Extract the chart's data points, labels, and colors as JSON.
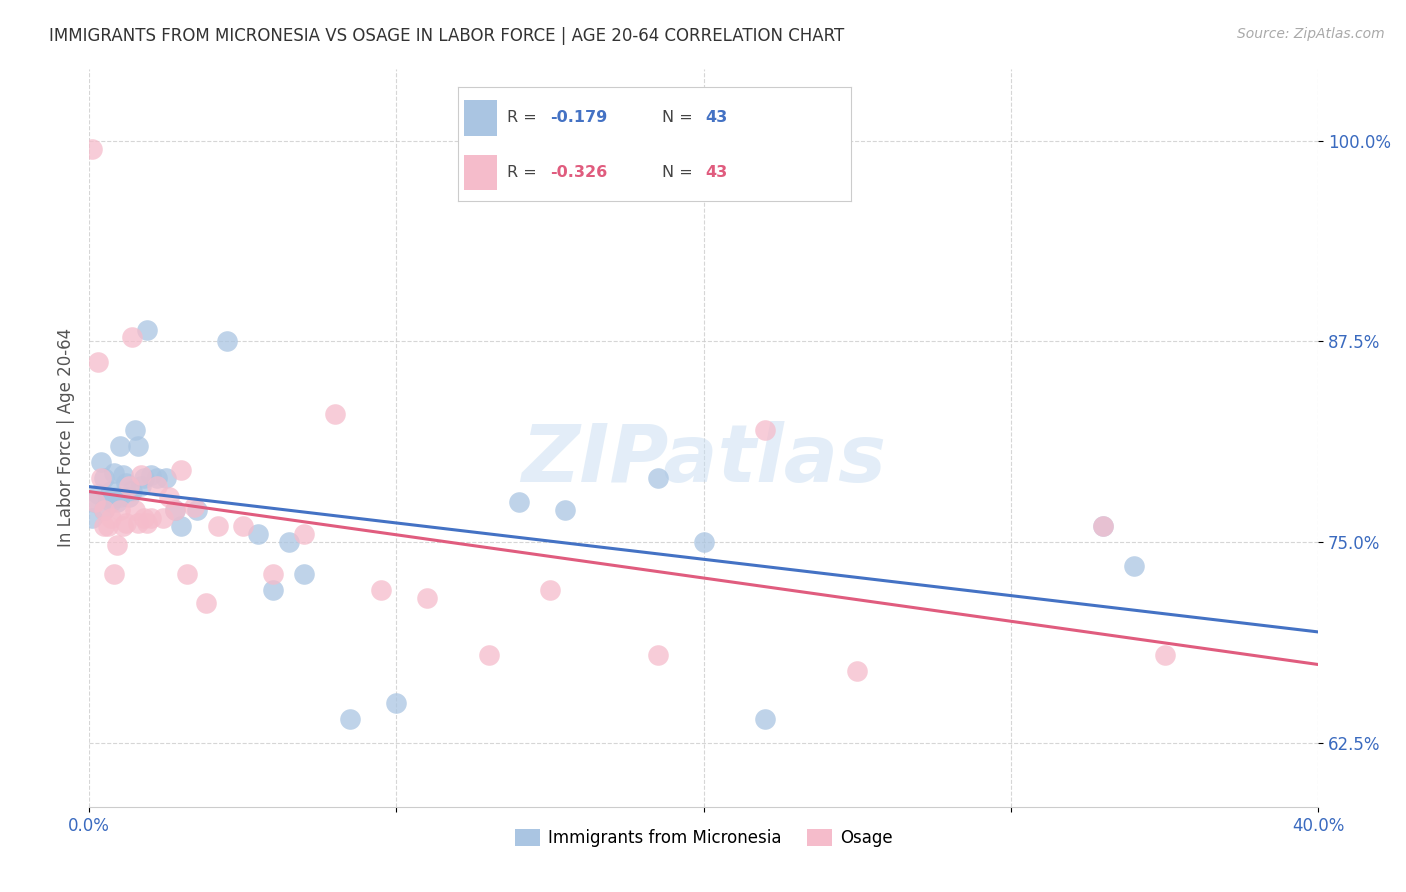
{
  "title": "IMMIGRANTS FROM MICRONESIA VS OSAGE IN LABOR FORCE | AGE 20-64 CORRELATION CHART",
  "source": "Source: ZipAtlas.com",
  "ylabel": "In Labor Force | Age 20-64",
  "xlim": [
    0.0,
    0.4
  ],
  "ylim": [
    0.585,
    1.045
  ],
  "xticks": [
    0.0,
    0.4
  ],
  "xticklabels": [
    "0.0%",
    "40.0%"
  ],
  "yticks": [
    0.625,
    0.75,
    0.875,
    1.0
  ],
  "yticklabels": [
    "62.5%",
    "75.0%",
    "87.5%",
    "100.0%"
  ],
  "legend_labels": [
    "Immigrants from Micronesia",
    "Osage"
  ],
  "blue_R": "-0.179",
  "blue_N": "43",
  "pink_R": "-0.326",
  "pink_N": "43",
  "blue_color": "#aac5e2",
  "pink_color": "#f5bccb",
  "blue_line_color": "#4472c4",
  "pink_line_color": "#e05c7e",
  "watermark": "ZIPatlas",
  "blue_scatter_x": [
    0.001,
    0.002,
    0.003,
    0.004,
    0.005,
    0.005,
    0.006,
    0.007,
    0.007,
    0.008,
    0.008,
    0.009,
    0.01,
    0.01,
    0.011,
    0.012,
    0.013,
    0.014,
    0.015,
    0.016,
    0.017,
    0.018,
    0.019,
    0.02,
    0.022,
    0.025,
    0.028,
    0.03,
    0.035,
    0.045,
    0.055,
    0.06,
    0.065,
    0.07,
    0.085,
    0.1,
    0.14,
    0.155,
    0.185,
    0.2,
    0.22,
    0.33,
    0.34
  ],
  "blue_scatter_y": [
    0.765,
    0.775,
    0.78,
    0.8,
    0.77,
    0.79,
    0.778,
    0.782,
    0.775,
    0.793,
    0.778,
    0.775,
    0.81,
    0.778,
    0.792,
    0.787,
    0.778,
    0.782,
    0.82,
    0.81,
    0.785,
    0.79,
    0.882,
    0.792,
    0.79,
    0.79,
    0.77,
    0.76,
    0.77,
    0.875,
    0.755,
    0.72,
    0.75,
    0.73,
    0.64,
    0.65,
    0.775,
    0.77,
    0.79,
    0.75,
    0.64,
    0.76,
    0.735
  ],
  "pink_scatter_x": [
    0.001,
    0.002,
    0.003,
    0.004,
    0.005,
    0.005,
    0.006,
    0.007,
    0.008,
    0.009,
    0.01,
    0.011,
    0.012,
    0.013,
    0.014,
    0.015,
    0.016,
    0.017,
    0.018,
    0.019,
    0.02,
    0.022,
    0.024,
    0.026,
    0.028,
    0.03,
    0.032,
    0.034,
    0.038,
    0.042,
    0.05,
    0.06,
    0.07,
    0.08,
    0.095,
    0.11,
    0.13,
    0.15,
    0.185,
    0.22,
    0.25,
    0.33,
    0.35
  ],
  "pink_scatter_y": [
    0.995,
    0.775,
    0.862,
    0.79,
    0.76,
    0.77,
    0.76,
    0.765,
    0.73,
    0.748,
    0.77,
    0.76,
    0.762,
    0.785,
    0.878,
    0.77,
    0.762,
    0.792,
    0.765,
    0.762,
    0.765,
    0.785,
    0.765,
    0.778,
    0.77,
    0.795,
    0.73,
    0.772,
    0.712,
    0.76,
    0.76,
    0.73,
    0.755,
    0.83,
    0.72,
    0.715,
    0.68,
    0.72,
    0.68,
    0.82,
    0.67,
    0.76,
    0.68
  ]
}
